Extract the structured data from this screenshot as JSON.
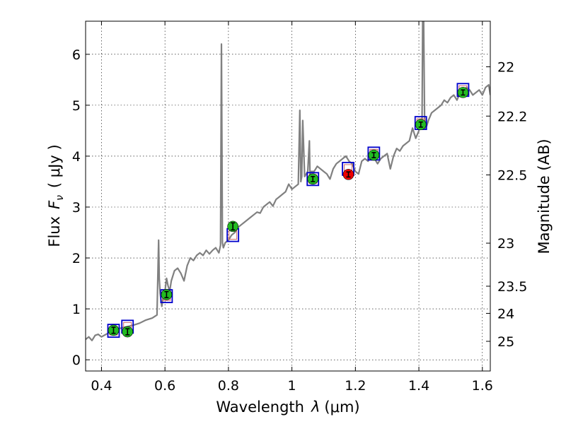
{
  "chart_data": {
    "type": "line",
    "xlabel_text": "Wavelength",
    "xlabel_symbol": "λ",
    "xlabel_unit": "(μm)",
    "ylabel_text": "Flux",
    "ylabel_symbol": "F",
    "ylabel_sub": "ν",
    "ylabel_unit": "( μJy )",
    "y2label": "Magnitude (AB)",
    "xlim": [
      0.35,
      1.625
    ],
    "ylim": [
      -0.22,
      6.65
    ],
    "x_ticks": [
      0.4,
      0.6,
      0.8,
      1.0,
      1.2,
      1.4,
      1.6
    ],
    "x_tick_labels": [
      "0.4",
      "0.6",
      "0.8",
      "1",
      "1.2",
      "1.4",
      "1.6"
    ],
    "y_ticks": [
      0,
      1,
      2,
      3,
      4,
      5,
      6
    ],
    "y_tick_labels": [
      "0",
      "1",
      "2",
      "3",
      "4",
      "5",
      "6"
    ],
    "mag_ticks": [
      22,
      22.2,
      22.5,
      23,
      23.5,
      24,
      25
    ],
    "mag_tick_labels": [
      "22",
      "22.2",
      "22.5",
      "23",
      "23.5",
      "24",
      "25"
    ],
    "grid": true,
    "colors": {
      "spectrum": "#808080",
      "model_box": "#0000cc",
      "model_inner": "#cc6666",
      "phot_green": "#22bb22",
      "phot_red": "#ee0000"
    },
    "series": [
      {
        "name": "spectrum",
        "x": [
          0.35,
          0.36,
          0.37,
          0.38,
          0.39,
          0.4,
          0.42,
          0.44,
          0.46,
          0.48,
          0.5,
          0.52,
          0.54,
          0.56,
          0.575,
          0.58,
          0.582,
          0.585,
          0.59,
          0.595,
          0.6,
          0.605,
          0.61,
          0.615,
          0.62,
          0.63,
          0.64,
          0.65,
          0.66,
          0.67,
          0.68,
          0.69,
          0.7,
          0.71,
          0.72,
          0.73,
          0.74,
          0.75,
          0.76,
          0.77,
          0.775,
          0.778,
          0.781,
          0.784,
          0.79,
          0.8,
          0.81,
          0.82,
          0.83,
          0.84,
          0.85,
          0.86,
          0.87,
          0.88,
          0.89,
          0.9,
          0.91,
          0.92,
          0.93,
          0.94,
          0.95,
          0.96,
          0.97,
          0.98,
          0.99,
          1.0,
          1.01,
          1.02,
          1.025,
          1.028,
          1.031,
          1.034,
          1.04,
          1.05,
          1.055,
          1.057,
          1.06,
          1.07,
          1.08,
          1.09,
          1.1,
          1.11,
          1.12,
          1.13,
          1.14,
          1.15,
          1.16,
          1.17,
          1.18,
          1.19,
          1.2,
          1.21,
          1.22,
          1.23,
          1.24,
          1.25,
          1.26,
          1.27,
          1.28,
          1.29,
          1.3,
          1.31,
          1.32,
          1.33,
          1.34,
          1.35,
          1.36,
          1.37,
          1.38,
          1.39,
          1.4,
          1.405,
          1.41,
          1.412,
          1.415,
          1.418,
          1.421,
          1.425,
          1.43,
          1.44,
          1.45,
          1.46,
          1.47,
          1.48,
          1.49,
          1.5,
          1.51,
          1.52,
          1.53,
          1.54,
          1.55,
          1.56,
          1.57,
          1.58,
          1.59,
          1.6,
          1.61,
          1.62,
          1.625
        ],
        "values": [
          0.4,
          0.45,
          0.38,
          0.48,
          0.5,
          0.45,
          0.52,
          0.6,
          0.62,
          0.65,
          0.68,
          0.72,
          0.78,
          0.82,
          0.88,
          2.35,
          1.6,
          1.3,
          1.05,
          1.25,
          1.35,
          1.6,
          1.45,
          1.35,
          1.55,
          1.75,
          1.8,
          1.7,
          1.55,
          1.85,
          2.0,
          1.95,
          2.05,
          2.1,
          2.05,
          2.15,
          2.08,
          2.15,
          2.2,
          2.1,
          2.25,
          6.2,
          2.3,
          2.2,
          2.3,
          2.35,
          2.45,
          2.5,
          2.6,
          2.65,
          2.7,
          2.75,
          2.8,
          2.85,
          2.9,
          2.88,
          3.0,
          3.05,
          3.1,
          3.02,
          3.15,
          3.2,
          3.25,
          3.3,
          3.45,
          3.35,
          3.4,
          3.45,
          4.9,
          3.5,
          3.6,
          4.7,
          3.6,
          3.7,
          4.3,
          3.6,
          3.7,
          3.7,
          3.8,
          3.75,
          3.7,
          3.65,
          3.55,
          3.75,
          3.85,
          3.9,
          3.95,
          4.0,
          3.9,
          3.85,
          3.7,
          3.65,
          3.9,
          3.95,
          3.9,
          4.0,
          3.95,
          3.85,
          3.95,
          4.0,
          4.05,
          3.75,
          4.0,
          4.15,
          4.1,
          4.2,
          4.25,
          4.3,
          4.55,
          4.35,
          4.5,
          4.7,
          4.6,
          6.65,
          6.65,
          4.8,
          4.55,
          4.6,
          4.7,
          4.85,
          4.9,
          4.95,
          5.0,
          5.1,
          5.05,
          5.15,
          5.2,
          5.1,
          5.25,
          5.3,
          5.35,
          5.3,
          5.2,
          5.25,
          5.3,
          5.2,
          5.35,
          5.4,
          5.2
        ]
      },
      {
        "name": "model_photometry",
        "x": [
          0.438,
          0.482,
          0.605,
          0.814,
          1.066,
          1.177,
          1.258,
          1.406,
          1.539
        ],
        "values": [
          0.57,
          0.65,
          1.25,
          2.45,
          3.55,
          3.75,
          4.05,
          4.65,
          5.3
        ]
      },
      {
        "name": "observed_photometry",
        "x": [
          0.438,
          0.482,
          0.605,
          0.814,
          1.066,
          1.258,
          1.406,
          1.539
        ],
        "values": [
          0.58,
          0.55,
          1.28,
          2.62,
          3.55,
          4.02,
          4.62,
          5.25
        ],
        "yerr": [
          0.06,
          0.06,
          0.06,
          0.07,
          0.05,
          0.05,
          0.05,
          0.05
        ]
      },
      {
        "name": "observed_photometry_red",
        "x": [
          1.178
        ],
        "values": [
          3.64
        ],
        "yerr": [
          0.05
        ]
      }
    ]
  }
}
